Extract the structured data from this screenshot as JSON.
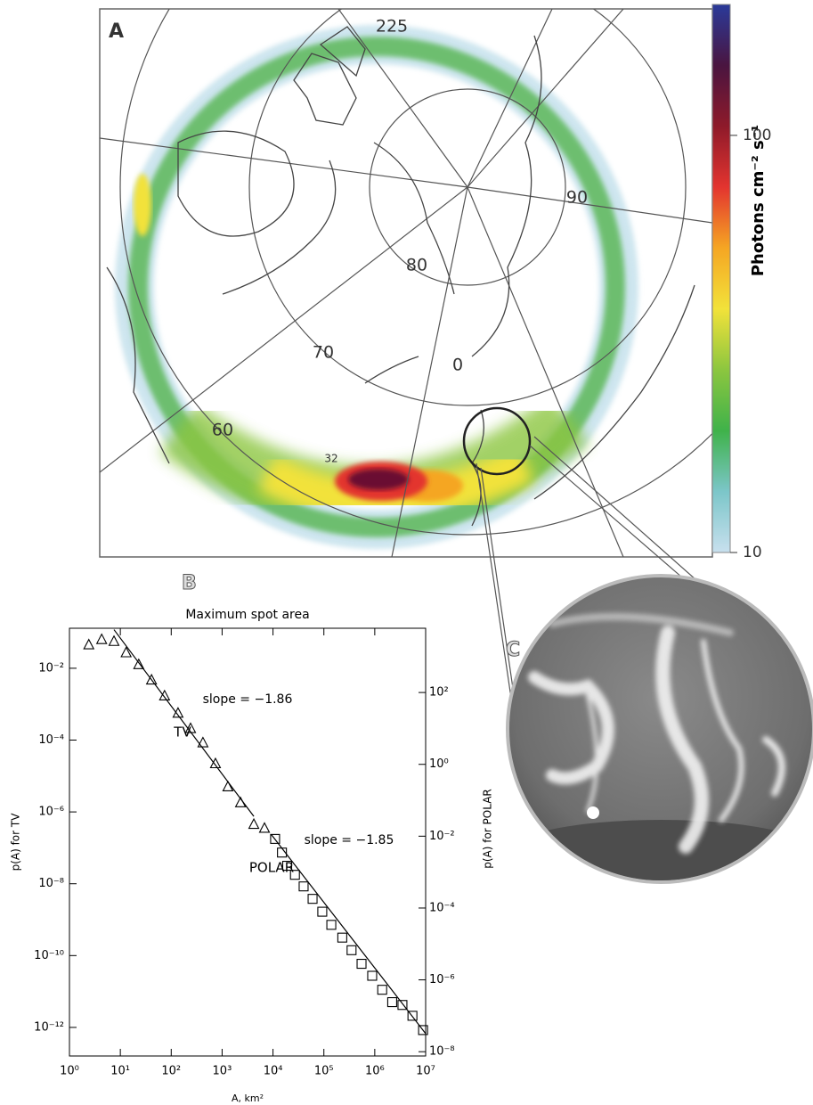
{
  "map": {
    "label": "A",
    "grid_labels": [
      "225",
      "90",
      "80",
      "70",
      "0",
      "60",
      "32"
    ]
  },
  "panel_labels": [
    "B",
    "C"
  ],
  "chart_data": [
    {
      "type": "colorbar",
      "label": "Photons cm⁻² s⁻¹",
      "log": true,
      "ylim": [
        10,
        206
      ],
      "yticks": [
        10,
        100
      ],
      "colors": [
        "#c8e0ee",
        "#7cc6c9",
        "#3fb24a",
        "#8cc63f",
        "#f2e23a",
        "#f5a623",
        "#e3342f",
        "#8e1a2a",
        "#4a1540",
        "#2a3a9a"
      ]
    },
    {
      "type": "scatter",
      "title": "Maximum spot area",
      "xlabel": "A, km²",
      "ylabel": "p(A) for TV",
      "y2label": "p(A) for POLAR",
      "log": true,
      "color": "#000000",
      "xlim": [
        1,
        10000000
      ],
      "ylim": [
        1.6e-13,
        0.13
      ],
      "y2lim": [
        7.6e-09,
        6150
      ],
      "xticks": [
        {
          "value": 1,
          "label": "10⁰"
        },
        {
          "value": 10,
          "label": "10¹"
        },
        {
          "value": 100,
          "label": "10²"
        },
        {
          "value": 1000,
          "label": "10³"
        },
        {
          "value": 10000,
          "label": "10⁴"
        },
        {
          "value": 100000,
          "label": "10⁵"
        },
        {
          "value": 1000000,
          "label": "10⁶"
        },
        {
          "value": 10000000,
          "label": "10⁷"
        }
      ],
      "yticks": [
        {
          "value": 0.01,
          "label": "10⁻²"
        },
        {
          "value": 0.0001,
          "label": "10⁻⁴"
        },
        {
          "value": 1e-06,
          "label": "10⁻⁶"
        },
        {
          "value": 1e-08,
          "label": "10⁻⁸"
        },
        {
          "value": 1e-10,
          "label": "10⁻¹⁰"
        },
        {
          "value": 1e-12,
          "label": "10⁻¹²"
        }
      ],
      "y2ticks": [
        {
          "value": 100,
          "label": "10²"
        },
        {
          "value": 1,
          "label": "10⁰"
        },
        {
          "value": 0.01,
          "label": "10⁻²"
        },
        {
          "value": 0.0001,
          "label": "10⁻⁴"
        },
        {
          "value": 1e-06,
          "label": "10⁻⁶"
        },
        {
          "value": 1e-08,
          "label": "10⁻⁸"
        }
      ],
      "series": [
        {
          "name": "TV",
          "marker": "triangle",
          "x": [
            2.4,
            4.3,
            7.5,
            13,
            23,
            41,
            74,
            136,
            240,
            420,
            740,
            1300,
            2300,
            4200,
            6800
          ],
          "values": [
            0.045,
            0.063,
            0.056,
            0.027,
            0.0126,
            0.0047,
            0.0017,
            0.00056,
            0.00021,
            8.4e-05,
            2.2e-05,
            5e-06,
            1.8e-06,
            4.5e-07,
            3.5e-07
          ]
        },
        {
          "name": "POLAR",
          "marker": "square",
          "axis": "y2",
          "x": [
            11000,
            15000,
            19000,
            27000,
            40000,
            60000,
            93000,
            140000,
            230000,
            350000,
            550000,
            890000,
            1400000,
            2200000,
            3500000,
            5500000,
            8900000
          ],
          "values": [
            0.0084,
            0.0035,
            0.0015,
            0.00084,
            0.0004,
            0.00018,
            7.9e-05,
            3.4e-05,
            1.5e-05,
            6.7e-06,
            2.8e-06,
            1.3e-06,
            5.3e-07,
            2.4e-07,
            2e-07,
            1e-07,
            4e-08
          ]
        }
      ],
      "fits": [
        {
          "x": [
            7.5,
            4200
          ],
          "values": [
            0.119,
            7.5e-07
          ]
        },
        {
          "x": [
            9300,
            10000000
          ],
          "values": [
            0.011,
            3.2e-08
          ],
          "axis": "y2"
        }
      ],
      "annotations": [
        "slope = −1.86",
        "slope = −1.85"
      ]
    }
  ]
}
